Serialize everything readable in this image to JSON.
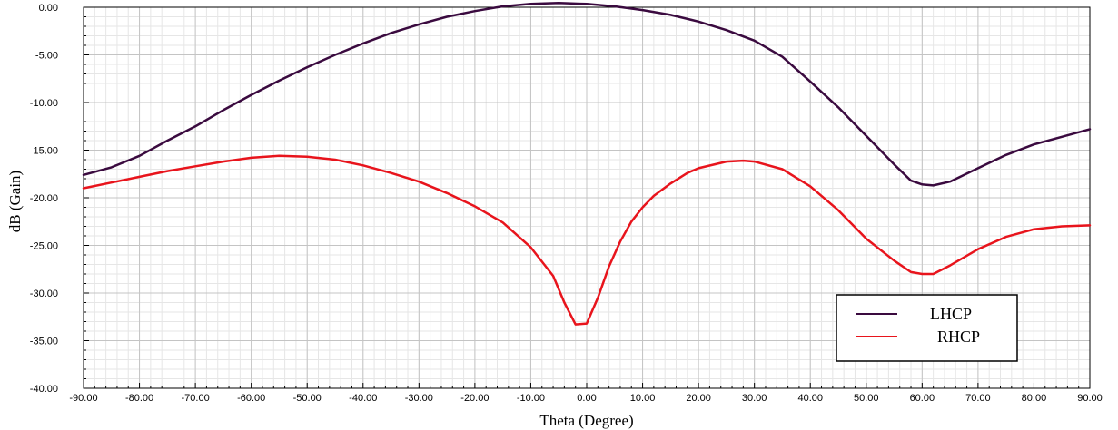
{
  "chart_data": {
    "type": "line",
    "xlabel": "Theta (Degree)",
    "ylabel": "dB (Gain)",
    "xlim": [
      -90,
      90
    ],
    "ylim": [
      -40,
      0
    ],
    "x_ticks": [
      -90,
      -80,
      -70,
      -60,
      -50,
      -40,
      -30,
      -20,
      -10,
      0,
      10,
      20,
      30,
      40,
      50,
      60,
      70,
      80,
      90
    ],
    "y_ticks": [
      0,
      -5,
      -10,
      -15,
      -20,
      -25,
      -30,
      -35,
      -40
    ],
    "x_tick_labels": [
      "-90.00",
      "-80.00",
      "-70.00",
      "-60.00",
      "-50.00",
      "-40.00",
      "-30.00",
      "-20.00",
      "-10.00",
      "0.00",
      "10.00",
      "20.00",
      "30.00",
      "40.00",
      "50.00",
      "60.00",
      "70.00",
      "80.00",
      "90.00"
    ],
    "y_tick_labels": [
      "0.00",
      "-5.00",
      "-10.00",
      "-15.00",
      "-20.00",
      "-25.00",
      "-30.00",
      "-35.00",
      "-40.00"
    ],
    "grid": true,
    "legend_position": "bottom-right",
    "series": [
      {
        "name": "LHCP",
        "color": "#3a0a3f",
        "x": [
          -90,
          -85,
          -80,
          -75,
          -70,
          -65,
          -60,
          -55,
          -50,
          -45,
          -40,
          -35,
          -30,
          -25,
          -20,
          -15,
          -10,
          -5,
          0,
          5,
          10,
          15,
          20,
          25,
          30,
          35,
          40,
          45,
          50,
          55,
          58,
          60,
          62,
          65,
          70,
          75,
          80,
          85,
          90
        ],
        "y": [
          -17.6,
          -16.8,
          -15.6,
          -14.0,
          -12.5,
          -10.8,
          -9.2,
          -7.7,
          -6.3,
          -5.0,
          -3.8,
          -2.7,
          -1.8,
          -1.0,
          -0.4,
          0.1,
          0.35,
          0.45,
          0.35,
          0.1,
          -0.3,
          -0.8,
          -1.5,
          -2.4,
          -3.5,
          -5.2,
          -7.8,
          -10.5,
          -13.5,
          -16.5,
          -18.2,
          -18.6,
          -18.7,
          -18.3,
          -16.9,
          -15.5,
          -14.4,
          -13.6,
          -12.8
        ]
      },
      {
        "name": "RHCP",
        "color": "#e8141c",
        "x": [
          -90,
          -85,
          -80,
          -75,
          -70,
          -65,
          -60,
          -55,
          -50,
          -45,
          -40,
          -35,
          -30,
          -25,
          -20,
          -15,
          -10,
          -6,
          -4,
          -2,
          0,
          2,
          4,
          6,
          8,
          10,
          12,
          15,
          18,
          20,
          25,
          28,
          30,
          35,
          40,
          45,
          50,
          55,
          58,
          60,
          62,
          65,
          70,
          75,
          80,
          85,
          90
        ],
        "y": [
          -19.0,
          -18.4,
          -17.8,
          -17.2,
          -16.7,
          -16.2,
          -15.8,
          -15.6,
          -15.7,
          -16.0,
          -16.6,
          -17.4,
          -18.3,
          -19.5,
          -20.9,
          -22.6,
          -25.2,
          -28.2,
          -31.0,
          -33.3,
          -33.2,
          -30.5,
          -27.2,
          -24.6,
          -22.5,
          -21.0,
          -19.8,
          -18.5,
          -17.4,
          -16.9,
          -16.2,
          -16.1,
          -16.2,
          -17.0,
          -18.8,
          -21.3,
          -24.3,
          -26.6,
          -27.8,
          -28.0,
          -28.0,
          -27.1,
          -25.4,
          -24.1,
          -23.3,
          -23.0,
          -22.9
        ]
      }
    ]
  }
}
